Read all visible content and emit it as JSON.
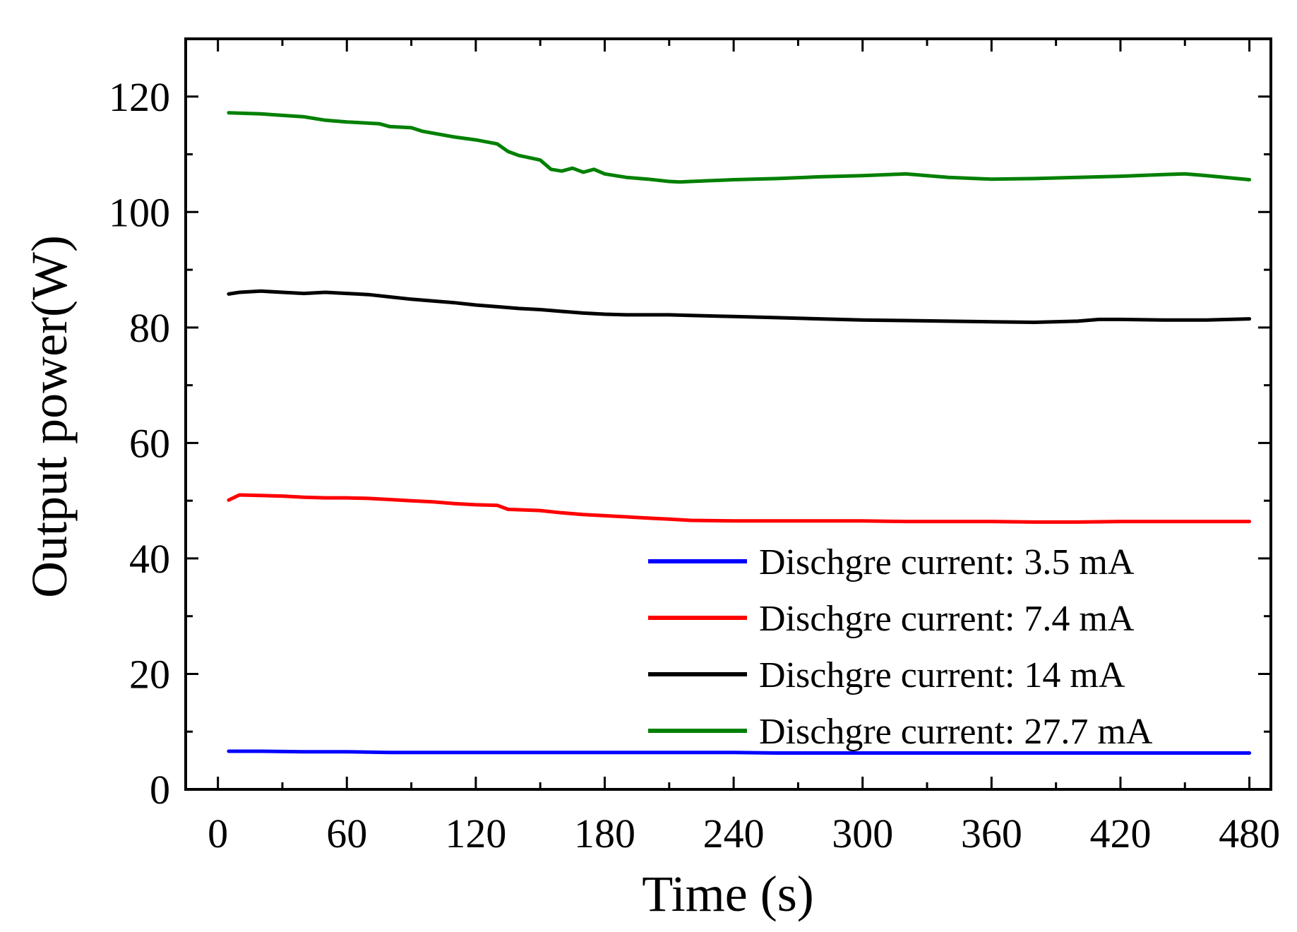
{
  "chart_data": {
    "type": "line",
    "title": "",
    "xlabel": "Time (s)",
    "ylabel": "Output power(W)",
    "xlim": [
      -15,
      490
    ],
    "ylim": [
      0,
      130
    ],
    "xticks": [
      0,
      60,
      120,
      180,
      240,
      300,
      360,
      420,
      480
    ],
    "yticks": [
      0,
      20,
      40,
      60,
      80,
      100,
      120
    ],
    "xtick_labels": [
      "0",
      "60",
      "120",
      "180",
      "240",
      "300",
      "360",
      "420",
      "480"
    ],
    "ytick_labels": [
      "0",
      "20",
      "40",
      "60",
      "80",
      "100",
      "120"
    ],
    "legend_position": "bottom-right",
    "grid": false,
    "series": [
      {
        "name": "Dischgre current: 3.5 mA",
        "color": "#0000ff",
        "x": [
          5,
          20,
          40,
          60,
          80,
          100,
          120,
          140,
          160,
          180,
          200,
          220,
          240,
          260,
          280,
          300,
          320,
          340,
          360,
          380,
          400,
          420,
          440,
          460,
          480
        ],
        "y": [
          6.6,
          6.6,
          6.5,
          6.5,
          6.4,
          6.4,
          6.4,
          6.4,
          6.4,
          6.4,
          6.4,
          6.4,
          6.4,
          6.3,
          6.3,
          6.3,
          6.3,
          6.3,
          6.3,
          6.3,
          6.3,
          6.3,
          6.3,
          6.3,
          6.3
        ]
      },
      {
        "name": "Dischgre current: 7.4 mA",
        "color": "#ff0000",
        "x": [
          5,
          10,
          20,
          30,
          40,
          50,
          60,
          70,
          80,
          90,
          100,
          110,
          120,
          130,
          135,
          150,
          160,
          170,
          180,
          190,
          200,
          210,
          220,
          240,
          260,
          280,
          300,
          320,
          340,
          360,
          380,
          400,
          420,
          440,
          460,
          480
        ],
        "y": [
          50.1,
          51,
          50.9,
          50.8,
          50.6,
          50.5,
          50.5,
          50.4,
          50.2,
          50,
          49.8,
          49.5,
          49.3,
          49.2,
          48.5,
          48.3,
          47.9,
          47.6,
          47.4,
          47.2,
          47,
          46.8,
          46.6,
          46.5,
          46.5,
          46.5,
          46.5,
          46.4,
          46.4,
          46.4,
          46.3,
          46.3,
          46.4,
          46.4,
          46.4,
          46.4
        ]
      },
      {
        "name": "Dischgre current: 14 mA",
        "color": "#000000",
        "x": [
          5,
          10,
          20,
          30,
          40,
          50,
          60,
          70,
          80,
          90,
          100,
          110,
          120,
          130,
          140,
          150,
          160,
          170,
          180,
          190,
          200,
          210,
          220,
          240,
          260,
          280,
          300,
          320,
          340,
          360,
          380,
          400,
          410,
          420,
          440,
          460,
          480
        ],
        "y": [
          85.8,
          86.1,
          86.3,
          86.1,
          85.9,
          86.1,
          85.9,
          85.7,
          85.3,
          84.9,
          84.6,
          84.3,
          83.9,
          83.6,
          83.3,
          83.1,
          82.8,
          82.5,
          82.3,
          82.2,
          82.2,
          82.2,
          82.1,
          81.9,
          81.7,
          81.5,
          81.3,
          81.2,
          81.1,
          81,
          80.9,
          81.1,
          81.4,
          81.4,
          81.3,
          81.3,
          81.5
        ]
      },
      {
        "name": "Dischgre current: 27.7 mA",
        "color": "#008000",
        "x": [
          5,
          20,
          40,
          50,
          60,
          75,
          80,
          90,
          95,
          110,
          120,
          130,
          135,
          140,
          150,
          155,
          160,
          165,
          170,
          175,
          180,
          190,
          200,
          210,
          215,
          220,
          240,
          260,
          280,
          300,
          320,
          340,
          360,
          380,
          400,
          420,
          440,
          450,
          460,
          480
        ],
        "y": [
          117.2,
          117,
          116.5,
          115.9,
          115.6,
          115.3,
          114.8,
          114.6,
          114,
          113,
          112.5,
          111.8,
          110.5,
          109.8,
          109,
          107.4,
          107.1,
          107.6,
          106.9,
          107.4,
          106.6,
          106,
          105.7,
          105.3,
          105.2,
          105.3,
          105.6,
          105.8,
          106.1,
          106.3,
          106.6,
          106,
          105.7,
          105.8,
          106,
          106.2,
          106.5,
          106.6,
          106.3,
          105.6
        ]
      }
    ]
  }
}
